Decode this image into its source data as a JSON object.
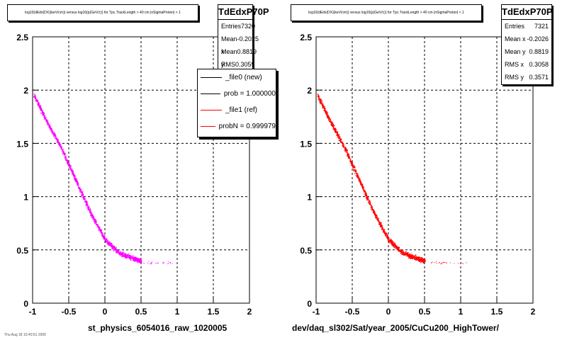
{
  "colors": {
    "series_new": "#ff00ff",
    "series_ref": "#ff0000",
    "grid": "#000000"
  },
  "left_panel": {
    "title": "log10(dEdx(DX)(keV/cm)) versus log10(p(GeV/c)) for Tpc.TrackLength > 40 cm |nSigmaProton| < 1",
    "xtitle": "st_physics_6054016_raw_1020005",
    "stats": {
      "name": "TdEdxP70P",
      "rows": [
        {
          "label": "Entries",
          "value": "7320"
        },
        {
          "label": "Mean x",
          "value": "-0.2025"
        },
        {
          "label": "Mean y",
          "value": "0.8819"
        },
        {
          "label": "RMS x",
          "value": "0.3059"
        }
      ]
    },
    "legend": [
      {
        "label": "_file0 (new)",
        "color": "#000000"
      },
      {
        "label": "prob = 1.000000",
        "color": "#000000"
      },
      {
        "label": "_file1 (ref)",
        "color": "#ff0000"
      },
      {
        "label": "probN = 0.999979",
        "color": "#ff0000"
      }
    ]
  },
  "right_panel": {
    "title": "log10(dEdx(DX)(keV/cm)) versus log10(p(GeV/c)) for Tpc.TrackLength > 40 cm |nSigmaProton| < 1",
    "xtitle": "dev/daq_sl302/Sat/year_2005/CuCu200_HighTower/",
    "stats": {
      "name": "TdEdxP70P",
      "rows": [
        {
          "label": "Entries",
          "value": "7321"
        },
        {
          "label": "Mean x",
          "value": "-0.2026"
        },
        {
          "label": "Mean y",
          "value": "0.8819"
        },
        {
          "label": "RMS x",
          "value": "0.3058"
        },
        {
          "label": "RMS y",
          "value": "0.3571"
        }
      ]
    }
  },
  "bottom_note": "Thu Aug 18 15:40:51 2005",
  "chart_data": [
    {
      "type": "scatter",
      "title": "log10(dEdx(DX)(keV/cm)) versus log10(p(GeV/c)) for Tpc.TrackLength > 40 cm |nSigmaProton| < 1",
      "xlabel": "st_physics_6054016_raw_1020005",
      "ylabel": "",
      "xlim": [
        -1,
        2
      ],
      "ylim": [
        0,
        2.5
      ],
      "xticks": [
        "-1",
        "-0.5",
        "0",
        "0.5",
        "1",
        "1.5",
        "2"
      ],
      "yticks": [
        "0",
        "0.5",
        "1",
        "1.5",
        "2",
        "2.5"
      ],
      "grid": true,
      "series": [
        {
          "color": "#ff00ff",
          "band": [
            [
              -0.98,
              1.95
            ],
            [
              -0.8,
              1.7
            ],
            [
              -0.6,
              1.45
            ],
            [
              -0.4,
              1.15
            ],
            [
              -0.2,
              0.85
            ],
            [
              0.0,
              0.6
            ],
            [
              0.2,
              0.47
            ],
            [
              0.4,
              0.42
            ],
            [
              0.5,
              0.4
            ]
          ]
        }
      ]
    },
    {
      "type": "scatter",
      "title": "log10(dEdx(DX)(keV/cm)) versus log10(p(GeV/c)) for Tpc.TrackLength > 40 cm |nSigmaProton| < 1",
      "xlabel": "dev/daq_sl302/Sat/year_2005/CuCu200_HighTower/",
      "ylabel": "",
      "xlim": [
        -1,
        2
      ],
      "ylim": [
        0,
        2.5
      ],
      "xticks": [
        "-1",
        "-0.5",
        "0",
        "0.5",
        "1",
        "1.5",
        "2"
      ],
      "yticks": [
        "0",
        "0.5",
        "1",
        "1.5",
        "2",
        "2.5"
      ],
      "grid": true,
      "series": [
        {
          "color": "#ff0000",
          "band": [
            [
              -0.98,
              1.95
            ],
            [
              -0.8,
              1.7
            ],
            [
              -0.6,
              1.45
            ],
            [
              -0.4,
              1.15
            ],
            [
              -0.2,
              0.85
            ],
            [
              0.0,
              0.6
            ],
            [
              0.2,
              0.47
            ],
            [
              0.4,
              0.42
            ],
            [
              0.5,
              0.4
            ]
          ]
        }
      ]
    }
  ]
}
